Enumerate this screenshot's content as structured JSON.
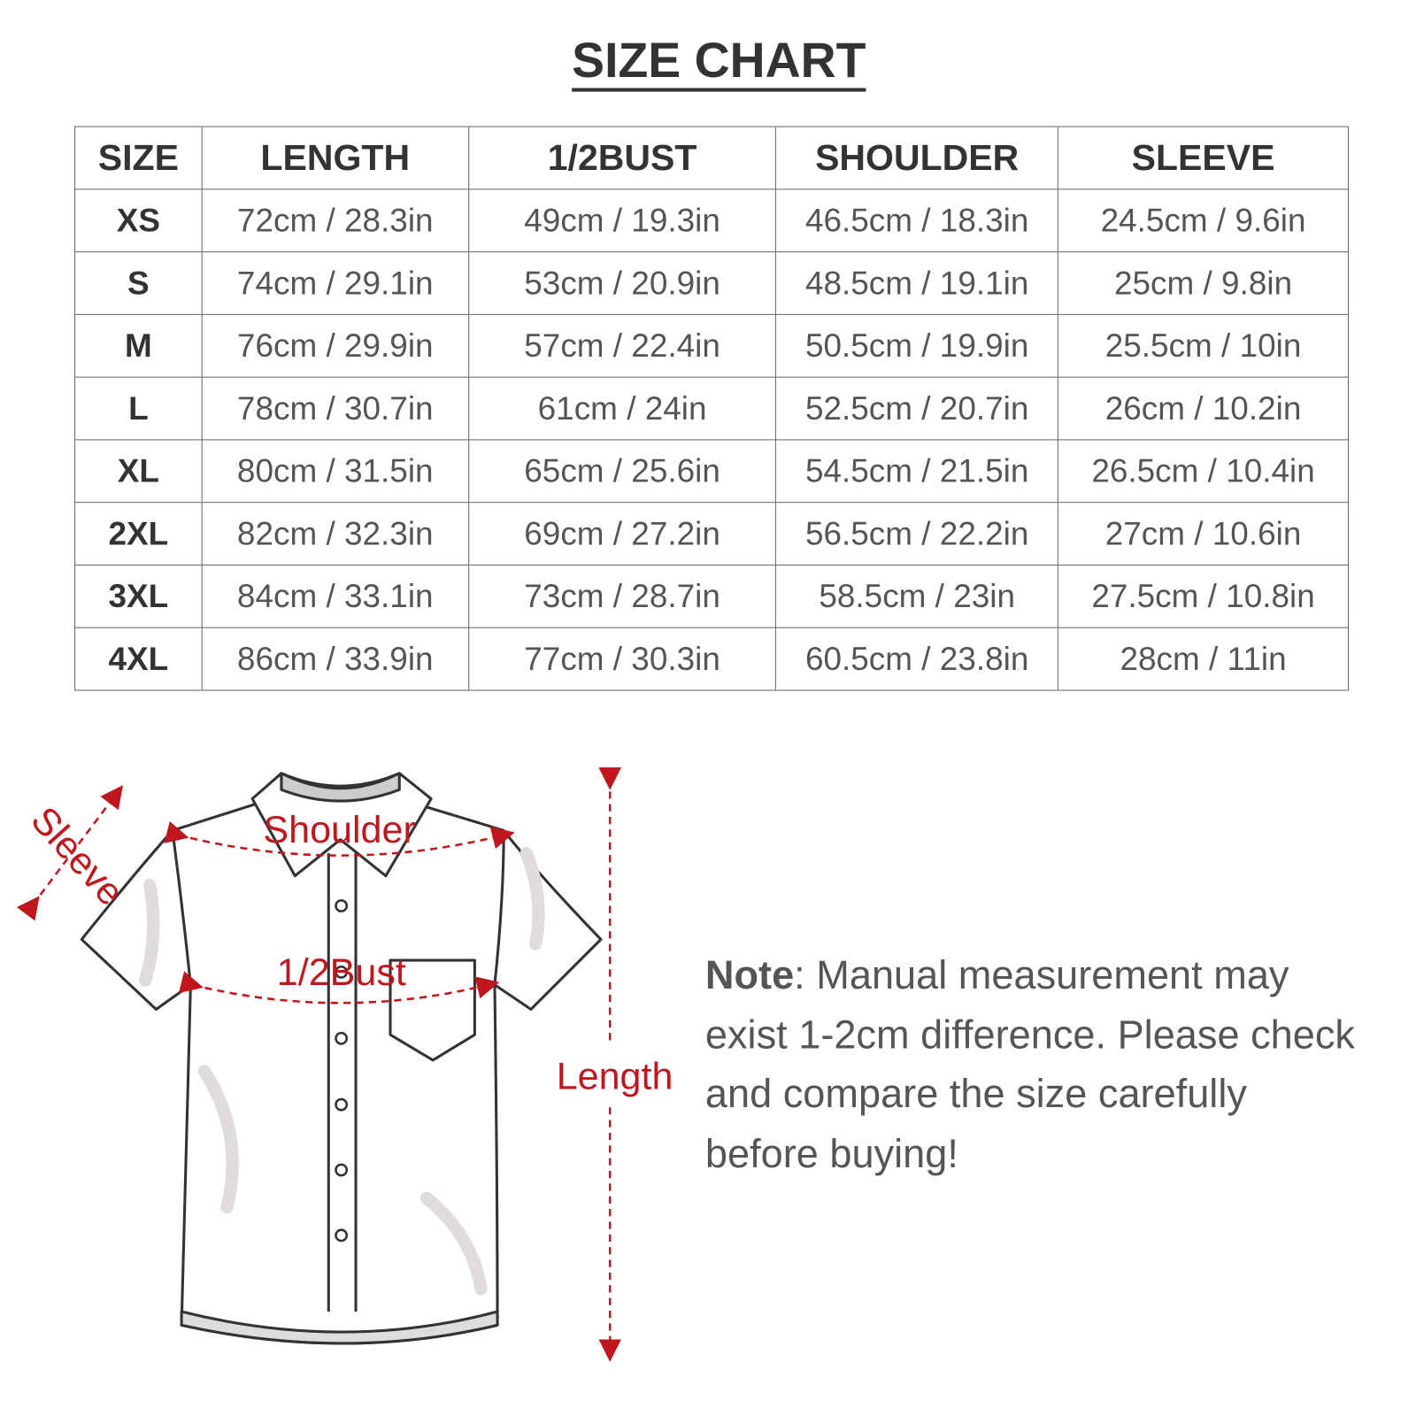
{
  "title": "SIZE CHART",
  "table": {
    "headers": [
      "SIZE",
      "LENGTH",
      "1/2BUST",
      "SHOULDER",
      "SLEEVE"
    ],
    "rows": [
      [
        "XS",
        "72cm / 28.3in",
        "49cm / 19.3in",
        "46.5cm / 18.3in",
        "24.5cm / 9.6in"
      ],
      [
        "S",
        "74cm / 29.1in",
        "53cm / 20.9in",
        "48.5cm / 19.1in",
        "25cm / 9.8in"
      ],
      [
        "M",
        "76cm / 29.9in",
        "57cm / 22.4in",
        "50.5cm / 19.9in",
        "25.5cm / 10in"
      ],
      [
        "L",
        "78cm / 30.7in",
        "61cm / 24in",
        "52.5cm / 20.7in",
        "26cm / 10.2in"
      ],
      [
        "XL",
        "80cm / 31.5in",
        "65cm / 25.6in",
        "54.5cm / 21.5in",
        "26.5cm / 10.4in"
      ],
      [
        "2XL",
        "82cm / 32.3in",
        "69cm / 27.2in",
        "56.5cm / 22.2in",
        "27cm / 10.6in"
      ],
      [
        "3XL",
        "84cm / 33.1in",
        "73cm / 28.7in",
        "58.5cm / 23in",
        "27.5cm / 10.8in"
      ],
      [
        "4XL",
        "86cm / 33.9in",
        "77cm / 30.3in",
        "60.5cm / 23.8in",
        "28cm / 11in"
      ]
    ]
  },
  "diagram": {
    "labels": {
      "sleeve": "Sleeve",
      "shoulder": "Shoulder",
      "bust": "1/2Bust",
      "length": "Length"
    },
    "accent_color": "#c0161e"
  },
  "note": {
    "label": "Note",
    "text": ": Manual measurement may exist 1-2cm difference. Please check and compare the size carefully before buying!"
  }
}
